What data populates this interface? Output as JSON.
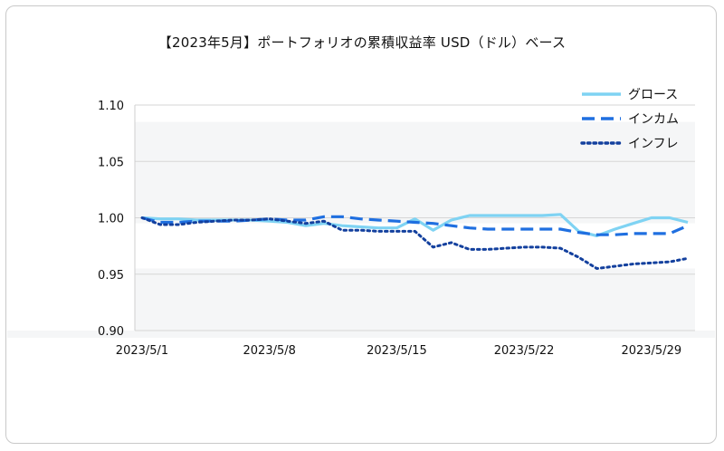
{
  "chart_data": {
    "type": "line",
    "title": "【2023年5月】ポートフォリオの累積収益率 USD（ドル）ベース",
    "xlabel": "",
    "ylabel": "",
    "ylim": [
      0.9,
      1.1
    ],
    "yticks": [
      "1.10",
      "1.05",
      "1.00",
      "0.95",
      "0.90"
    ],
    "xticks": [
      "2023/5/1",
      "2023/5/8",
      "2023/5/15",
      "2023/5/22",
      "2023/5/29"
    ],
    "x": [
      "2023/5/1",
      "2023/5/2",
      "2023/5/3",
      "2023/5/4",
      "2023/5/5",
      "2023/5/6",
      "2023/5/7",
      "2023/5/8",
      "2023/5/9",
      "2023/5/10",
      "2023/5/11",
      "2023/5/12",
      "2023/5/13",
      "2023/5/14",
      "2023/5/15",
      "2023/5/16",
      "2023/5/17",
      "2023/5/18",
      "2023/5/19",
      "2023/5/20",
      "2023/5/21",
      "2023/5/22",
      "2023/5/23",
      "2023/5/24",
      "2023/5/25",
      "2023/5/26",
      "2023/5/27",
      "2023/5/28",
      "2023/5/29",
      "2023/5/30",
      "2023/5/31"
    ],
    "legend_position": "top-right",
    "grid": true,
    "series": [
      {
        "name": "グロース",
        "color": "#7fd3f3",
        "style": "solid",
        "values": [
          1.0,
          0.999,
          0.999,
          0.998,
          0.998,
          0.998,
          0.998,
          0.997,
          0.996,
          0.993,
          0.995,
          0.993,
          0.992,
          0.991,
          0.991,
          0.999,
          0.989,
          0.998,
          1.002,
          1.002,
          1.002,
          1.002,
          1.002,
          1.003,
          0.988,
          0.984,
          0.99,
          0.995,
          1.0,
          1.0,
          0.996
        ]
      },
      {
        "name": "インカム",
        "color": "#1f6fe0",
        "style": "dashed",
        "values": [
          1.0,
          0.996,
          0.996,
          0.997,
          0.997,
          0.997,
          0.998,
          0.999,
          0.998,
          0.998,
          1.001,
          1.001,
          0.999,
          0.998,
          0.997,
          0.996,
          0.995,
          0.993,
          0.991,
          0.99,
          0.99,
          0.99,
          0.99,
          0.99,
          0.987,
          0.985,
          0.985,
          0.986,
          0.986,
          0.986,
          0.993
        ]
      },
      {
        "name": "インフレ",
        "color": "#13409e",
        "style": "dotted",
        "values": [
          1.0,
          0.994,
          0.994,
          0.996,
          0.997,
          0.998,
          0.998,
          0.999,
          0.997,
          0.995,
          0.997,
          0.989,
          0.989,
          0.988,
          0.988,
          0.988,
          0.974,
          0.978,
          0.972,
          0.972,
          0.973,
          0.974,
          0.974,
          0.973,
          0.965,
          0.955,
          0.957,
          0.959,
          0.96,
          0.961,
          0.964
        ]
      }
    ]
  }
}
